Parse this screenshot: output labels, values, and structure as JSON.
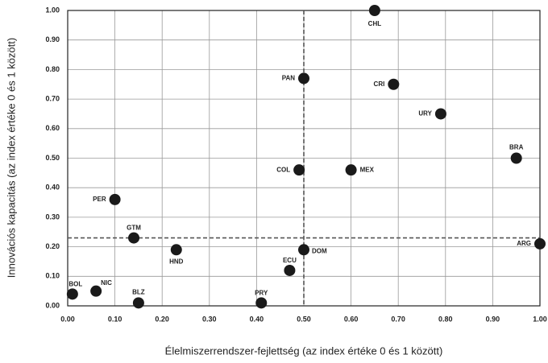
{
  "chart_data": {
    "type": "scatter",
    "x_label": "Élelmiszerrendszer-fejlettség (az index értéke 0 és 1 között)",
    "y_label": "Innovációs kapacitás (az index értéke 0 és 1 között)",
    "point_labels": [
      "CHL",
      "PAN",
      "CRI",
      "URY",
      "BRA",
      "MEX",
      "COL",
      "PER",
      "GTM",
      "HND",
      "ARG",
      "DOM",
      "ECU",
      "PRY",
      "BOL",
      "NIC",
      "BLZ"
    ],
    "x": [
      0.65,
      0.5,
      0.69,
      0.79,
      0.95,
      0.6,
      0.49,
      0.1,
      0.14,
      0.23,
      1.0,
      0.5,
      0.47,
      0.41,
      0.01,
      0.06,
      0.15
    ],
    "values": [
      1.0,
      0.77,
      0.75,
      0.65,
      0.5,
      0.46,
      0.46,
      0.36,
      0.23,
      0.19,
      0.21,
      0.19,
      0.12,
      0.01,
      0.04,
      0.05,
      0.01
    ],
    "color": "#1a1a1a",
    "reference_lines": {
      "x": 0.5,
      "y": 0.23
    },
    "xlim": [
      0,
      1
    ],
    "ylim": [
      0,
      1
    ],
    "xticks": [
      {
        "value": 0,
        "label": "0.00"
      },
      {
        "value": 0.1,
        "label": "0.10"
      },
      {
        "value": 0.2,
        "label": "0.20"
      },
      {
        "value": 0.3,
        "label": "0.30"
      },
      {
        "value": 0.4,
        "label": "0.40"
      },
      {
        "value": 0.5,
        "label": "0.50"
      },
      {
        "value": 0.6,
        "label": "0.60"
      },
      {
        "value": 0.7,
        "label": "0.70"
      },
      {
        "value": 0.8,
        "label": "0.80"
      },
      {
        "value": 0.9,
        "label": "0.90"
      },
      {
        "value": 1,
        "label": "1.00"
      }
    ],
    "yticks": [
      {
        "value": 0,
        "label": "0.00"
      },
      {
        "value": 0.1,
        "label": "0.10"
      },
      {
        "value": 0.2,
        "label": "0.20"
      },
      {
        "value": 0.3,
        "label": "0.30"
      },
      {
        "value": 0.4,
        "label": "0.40"
      },
      {
        "value": 0.5,
        "label": "0.50"
      },
      {
        "value": 0.6,
        "label": "0.60"
      },
      {
        "value": 0.7,
        "label": "0.70"
      },
      {
        "value": 0.8,
        "label": "0.80"
      },
      {
        "value": 0.9,
        "label": "0.90"
      },
      {
        "value": 1,
        "label": "1.00"
      }
    ],
    "grid": true
  }
}
